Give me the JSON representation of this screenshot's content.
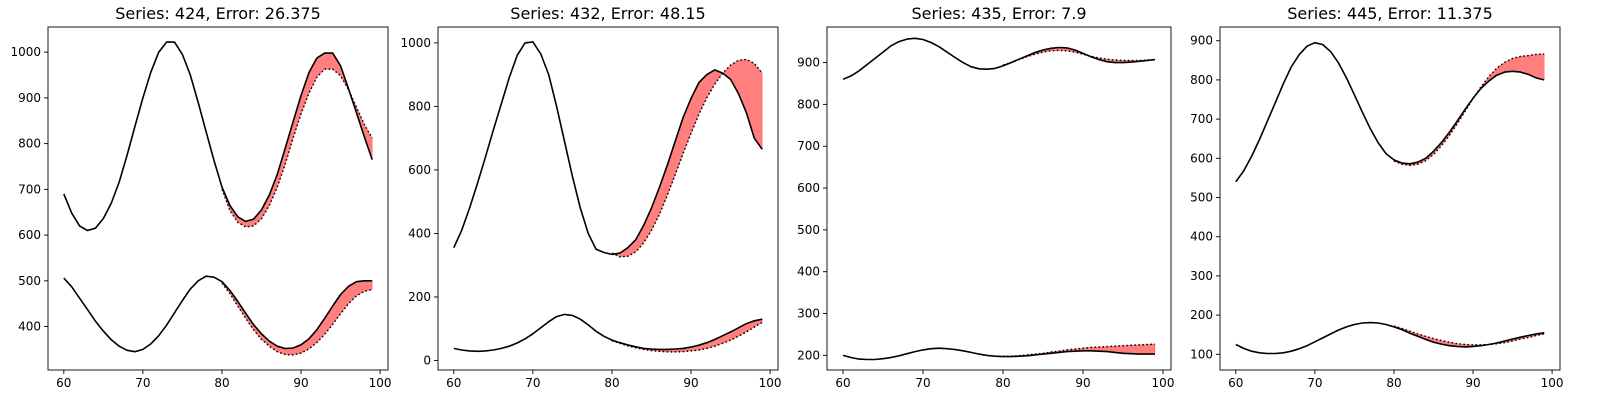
{
  "chart_data": [
    {
      "type": "line",
      "title": "Series: 424, Error: 26.375",
      "xlim": [
        58,
        101
      ],
      "ylim": [
        305,
        1055
      ],
      "xticks": [
        60,
        70,
        80,
        90,
        100
      ],
      "yticks": [
        400,
        500,
        600,
        700,
        800,
        900,
        1000
      ],
      "series": [
        {
          "style": "solid",
          "x": [
            60,
            61,
            62,
            63,
            64,
            65,
            66,
            67,
            68,
            69,
            70,
            71,
            72,
            73,
            74,
            75,
            76,
            77,
            78,
            79,
            80,
            81,
            82,
            83,
            84,
            85,
            86,
            87,
            88,
            89,
            90,
            91,
            92,
            93,
            94,
            95,
            96,
            97,
            98,
            99
          ],
          "y": [
            690,
            648,
            620,
            610,
            615,
            636,
            670,
            716,
            775,
            838,
            900,
            956,
            1000,
            1022,
            1022,
            995,
            950,
            890,
            826,
            763,
            705,
            665,
            640,
            630,
            635,
            655,
            688,
            733,
            790,
            848,
            905,
            955,
            987,
            998,
            998,
            970,
            920,
            868,
            815,
            765
          ]
        },
        {
          "style": "dotted",
          "x": [
            80,
            81,
            82,
            83,
            84,
            85,
            86,
            87,
            88,
            89,
            90,
            91,
            92,
            93,
            94,
            95,
            96,
            97,
            98,
            99
          ],
          "y": [
            700,
            654,
            628,
            618,
            620,
            636,
            665,
            705,
            755,
            812,
            865,
            910,
            945,
            963,
            963,
            948,
            918,
            880,
            842,
            812
          ]
        },
        {
          "style": "solid",
          "x": [
            60,
            61,
            62,
            63,
            64,
            65,
            66,
            67,
            68,
            69,
            70,
            71,
            72,
            73,
            74,
            75,
            76,
            77,
            78,
            79,
            80,
            81,
            82,
            83,
            84,
            85,
            86,
            87,
            88,
            89,
            90,
            91,
            92,
            93,
            94,
            95,
            96,
            97,
            98,
            99
          ],
          "y": [
            506,
            487,
            462,
            437,
            412,
            390,
            371,
            357,
            348,
            345,
            350,
            362,
            380,
            403,
            430,
            457,
            482,
            500,
            510,
            508,
            498,
            479,
            455,
            429,
            404,
            384,
            368,
            357,
            352,
            353,
            360,
            373,
            393,
            418,
            445,
            470,
            488,
            498,
            500,
            500
          ]
        },
        {
          "style": "dotted",
          "x": [
            80,
            81,
            82,
            83,
            84,
            85,
            86,
            87,
            88,
            89,
            90,
            91,
            92,
            93,
            94,
            95,
            96,
            97,
            98,
            99
          ],
          "y": [
            495,
            472,
            445,
            418,
            393,
            372,
            357,
            345,
            339,
            338,
            342,
            351,
            365,
            383,
            405,
            428,
            450,
            467,
            477,
            481
          ]
        }
      ]
    },
    {
      "type": "line",
      "title": "Series: 432, Error: 48.15",
      "xlim": [
        58,
        101
      ],
      "ylim": [
        -30,
        1050
      ],
      "xticks": [
        60,
        70,
        80,
        90,
        100
      ],
      "yticks": [
        0,
        200,
        400,
        600,
        800,
        1000
      ],
      "series": [
        {
          "style": "solid",
          "x": [
            60,
            61,
            62,
            63,
            64,
            65,
            66,
            67,
            68,
            69,
            70,
            71,
            72,
            73,
            74,
            75,
            76,
            77,
            78,
            79,
            80,
            81,
            82,
            83,
            84,
            85,
            86,
            87,
            88,
            89,
            90,
            91,
            92,
            93,
            94,
            95,
            96,
            97,
            98,
            99
          ],
          "y": [
            355,
            410,
            480,
            558,
            640,
            725,
            808,
            890,
            960,
            1000,
            1003,
            965,
            900,
            800,
            690,
            580,
            480,
            400,
            350,
            340,
            334,
            338,
            355,
            380,
            425,
            480,
            545,
            615,
            690,
            765,
            825,
            875,
            900,
            915,
            905,
            885,
            840,
            780,
            700,
            665
          ]
        },
        {
          "style": "dotted",
          "x": [
            80,
            81,
            82,
            83,
            84,
            85,
            86,
            87,
            88,
            89,
            90,
            91,
            92,
            93,
            94,
            95,
            96,
            97,
            98,
            99
          ],
          "y": [
            338,
            326,
            328,
            342,
            370,
            410,
            460,
            520,
            585,
            652,
            715,
            775,
            827,
            870,
            905,
            930,
            945,
            948,
            935,
            905
          ]
        },
        {
          "style": "solid",
          "x": [
            60,
            61,
            62,
            63,
            64,
            65,
            66,
            67,
            68,
            69,
            70,
            71,
            72,
            73,
            74,
            75,
            76,
            77,
            78,
            79,
            80,
            81,
            82,
            83,
            84,
            85,
            86,
            87,
            88,
            89,
            90,
            91,
            92,
            93,
            94,
            95,
            96,
            97,
            98,
            99
          ],
          "y": [
            38,
            33,
            30,
            29,
            30,
            33,
            38,
            45,
            55,
            68,
            84,
            103,
            122,
            138,
            145,
            142,
            130,
            112,
            92,
            76,
            64,
            56,
            49,
            43,
            38,
            36,
            35,
            35,
            36,
            38,
            42,
            48,
            56,
            66,
            78,
            90,
            103,
            116,
            125,
            130
          ]
        },
        {
          "style": "dotted",
          "x": [
            80,
            81,
            82,
            83,
            84,
            85,
            86,
            87,
            88,
            89,
            90,
            91,
            92,
            93,
            94,
            95,
            96,
            97,
            98,
            99
          ],
          "y": [
            62,
            54,
            46,
            40,
            35,
            31,
            29,
            27,
            27,
            28,
            30,
            33,
            38,
            45,
            54,
            64,
            76,
            90,
            105,
            120
          ]
        }
      ]
    },
    {
      "type": "line",
      "title": "Series: 435, Error: 7.9",
      "xlim": [
        58,
        101
      ],
      "ylim": [
        165,
        985
      ],
      "xticks": [
        60,
        70,
        80,
        90,
        100
      ],
      "yticks": [
        200,
        300,
        400,
        500,
        600,
        700,
        800,
        900
      ],
      "series": [
        {
          "style": "solid",
          "x": [
            60,
            61,
            62,
            63,
            64,
            65,
            66,
            67,
            68,
            69,
            70,
            71,
            72,
            73,
            74,
            75,
            76,
            77,
            78,
            79,
            80,
            81,
            82,
            83,
            84,
            85,
            86,
            87,
            88,
            89,
            90,
            91,
            92,
            93,
            94,
            95,
            96,
            97,
            98,
            99
          ],
          "y": [
            860,
            868,
            880,
            895,
            910,
            925,
            940,
            950,
            956,
            958,
            955,
            948,
            938,
            925,
            912,
            900,
            890,
            885,
            884,
            886,
            892,
            900,
            908,
            916,
            924,
            930,
            934,
            936,
            935,
            930,
            922,
            914,
            907,
            902,
            900,
            900,
            901,
            903,
            905,
            907
          ]
        },
        {
          "style": "dotted",
          "x": [
            80,
            81,
            82,
            83,
            84,
            85,
            86,
            87,
            88,
            89,
            90,
            91,
            92,
            93,
            94,
            95,
            96,
            97,
            98,
            99
          ],
          "y": [
            894,
            900,
            907,
            914,
            920,
            925,
            928,
            929,
            928,
            925,
            920,
            915,
            911,
            908,
            906,
            905,
            905,
            905,
            906,
            907
          ]
        },
        {
          "style": "solid",
          "x": [
            60,
            61,
            62,
            63,
            64,
            65,
            66,
            67,
            68,
            69,
            70,
            71,
            72,
            73,
            74,
            75,
            76,
            77,
            78,
            79,
            80,
            81,
            82,
            83,
            84,
            85,
            86,
            87,
            88,
            89,
            90,
            91,
            92,
            93,
            94,
            95,
            96,
            97,
            98,
            99
          ],
          "y": [
            200,
            195,
            191,
            190,
            190,
            192,
            195,
            199,
            204,
            209,
            213,
            216,
            217,
            216,
            214,
            211,
            207,
            203,
            200,
            198,
            197,
            197,
            198,
            199,
            201,
            203,
            205,
            207,
            209,
            210,
            211,
            211,
            210,
            209,
            207,
            205,
            204,
            203,
            203,
            203
          ]
        },
        {
          "style": "dotted",
          "x": [
            80,
            81,
            82,
            83,
            84,
            85,
            86,
            87,
            88,
            89,
            90,
            91,
            92,
            93,
            94,
            95,
            96,
            97,
            98,
            99
          ],
          "y": [
            198,
            198,
            199,
            201,
            203,
            205,
            208,
            210,
            213,
            215,
            217,
            219,
            220,
            221,
            222,
            223,
            224,
            225,
            226,
            227
          ]
        }
      ]
    },
    {
      "type": "line",
      "title": "Series: 445, Error: 11.375",
      "xlim": [
        58,
        101
      ],
      "ylim": [
        60,
        935
      ],
      "xticks": [
        60,
        70,
        80,
        90,
        100
      ],
      "yticks": [
        100,
        200,
        300,
        400,
        500,
        600,
        700,
        800,
        900
      ],
      "series": [
        {
          "style": "solid",
          "x": [
            60,
            61,
            62,
            63,
            64,
            65,
            66,
            67,
            68,
            69,
            70,
            71,
            72,
            73,
            74,
            75,
            76,
            77,
            78,
            79,
            80,
            81,
            82,
            83,
            84,
            85,
            86,
            87,
            88,
            89,
            90,
            91,
            92,
            93,
            94,
            95,
            96,
            97,
            98,
            99
          ],
          "y": [
            540,
            568,
            605,
            648,
            695,
            742,
            790,
            833,
            864,
            886,
            895,
            890,
            872,
            843,
            805,
            762,
            718,
            676,
            640,
            612,
            596,
            588,
            586,
            590,
            600,
            618,
            640,
            666,
            695,
            725,
            753,
            778,
            797,
            812,
            820,
            822,
            820,
            814,
            805,
            800
          ]
        },
        {
          "style": "dotted",
          "x": [
            80,
            81,
            82,
            83,
            84,
            85,
            86,
            87,
            88,
            89,
            90,
            91,
            92,
            93,
            94,
            95,
            96,
            97,
            98,
            99
          ],
          "y": [
            593,
            585,
            582,
            585,
            594,
            610,
            632,
            658,
            688,
            720,
            752,
            782,
            808,
            830,
            845,
            855,
            860,
            862,
            865,
            866
          ]
        },
        {
          "style": "solid",
          "x": [
            60,
            61,
            62,
            63,
            64,
            65,
            66,
            67,
            68,
            69,
            70,
            71,
            72,
            73,
            74,
            75,
            76,
            77,
            78,
            79,
            80,
            81,
            82,
            83,
            84,
            85,
            86,
            87,
            88,
            89,
            90,
            91,
            92,
            93,
            94,
            95,
            96,
            97,
            98,
            99
          ],
          "y": [
            125,
            115,
            108,
            104,
            102,
            102,
            104,
            108,
            114,
            122,
            132,
            142,
            152,
            162,
            170,
            176,
            180,
            181,
            180,
            176,
            170,
            163,
            154,
            146,
            138,
            131,
            126,
            122,
            120,
            119,
            120,
            122,
            125,
            129,
            134,
            139,
            144,
            148,
            152,
            155
          ]
        },
        {
          "style": "dotted",
          "x": [
            80,
            81,
            82,
            83,
            84,
            85,
            86,
            87,
            88,
            89,
            90,
            91,
            92,
            93,
            94,
            95,
            96,
            97,
            98,
            99
          ],
          "y": [
            172,
            166,
            159,
            152,
            146,
            140,
            135,
            131,
            127,
            125,
            124,
            124,
            125,
            127,
            130,
            134,
            139,
            143,
            148,
            152
          ]
        }
      ]
    }
  ],
  "colors": {
    "line": "#000000",
    "fill": "#ff0000",
    "fill_opacity": 0.5,
    "axes": "#000000",
    "background": "#ffffff"
  }
}
